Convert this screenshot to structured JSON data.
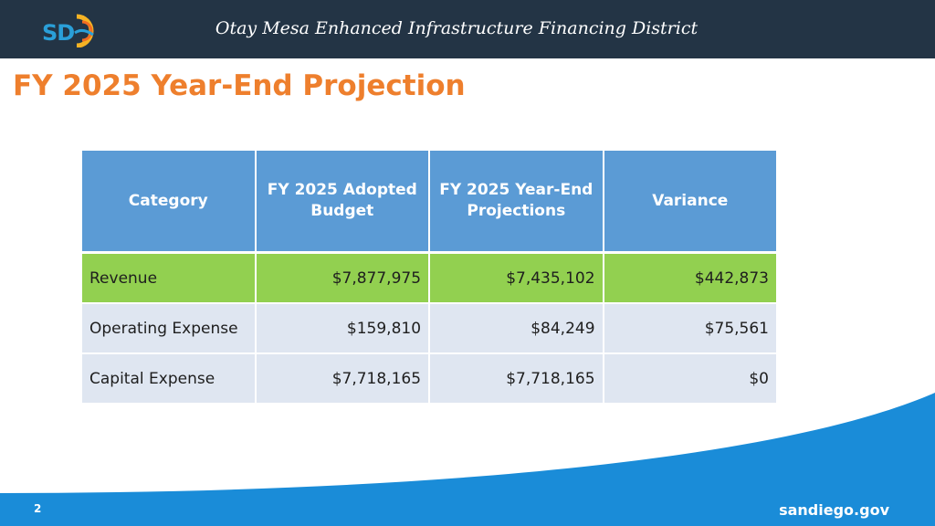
{
  "header": {
    "logo_text": "SD",
    "district_title": "Otay Mesa Enhanced Infrastructure Financing District"
  },
  "slide": {
    "title": "FY 2025 Year-End Projection"
  },
  "table": {
    "headers": [
      "Category",
      "FY 2025 Adopted Budget",
      "FY 2025 Year-End Projections",
      "Variance"
    ],
    "rows": [
      [
        "Revenue",
        "$7,877,975",
        "$7,435,102",
        "$442,873"
      ],
      [
        "Operating Expense",
        "$159,810",
        "$84,249",
        "$75,561"
      ],
      [
        "Capital Expense",
        "$7,718,165",
        "$7,718,165",
        "$0"
      ]
    ]
  },
  "footer": {
    "page_number": "2",
    "site": "sandiego.gov"
  },
  "colors": {
    "header_bg": "#233445",
    "title": "#ee7f2d",
    "table_header": "#5b9bd5",
    "revenue_row": "#92d050",
    "row_bg": "#dfe6f1",
    "footer_bg": "#1a8cd8"
  }
}
